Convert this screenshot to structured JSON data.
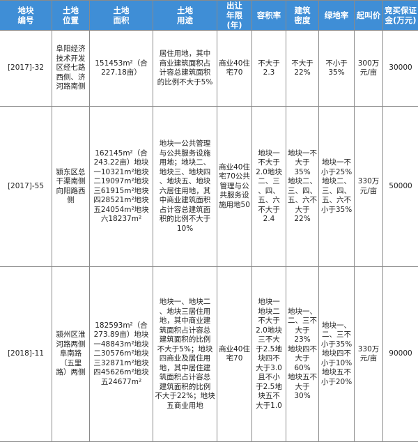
{
  "header": {
    "colors": {
      "header_bg": "#3f8ed6",
      "header_text": "#ffffff",
      "border": "#8a8a8a"
    },
    "columns": [
      "地块\n编号",
      "土地\n位置",
      "土地\n面积",
      "土地\n用途",
      "出让\n年限\n(年)",
      "容积率",
      "建筑\n密度",
      "绿地率",
      "起叫价",
      "竞买保证\n金(万元)"
    ]
  },
  "rows": [
    {
      "id": "[2017]-32",
      "location": "阜阳经济\n技术开发\n区经七路\n西侧、济\n河路南侧",
      "area": "151453m²（合\n227.18亩）",
      "use": "居住用地，其中\n商业建筑面积占\n计容总建筑面积\n的比例不大于5%",
      "term": "商业40住\n宅70",
      "far": "不大于\n2.3",
      "density": "不大于\n22%",
      "green": "不小于\n35%",
      "price": "300万\n元/亩",
      "deposit": "30000"
    },
    {
      "id": "[2017]-55",
      "location": "颍东区总\n干渠南侧\n向阳路西\n侧",
      "area": "162145m²（合\n243.22亩）地块\n一10321m²地块\n二19097m²地块\n三61915m²地块\n四28521m²地块\n五24054m²地块\n六18237m²",
      "use": "地块一公共管理\n与公共服务设施\n用地；地块二、\n地块三、地块四\n、地块五、地块\n六居住用地，其\n中商业建筑面积\n占计容总建筑面\n积的比例不大于\n10%",
      "term": "商业40住\n宅70公共\n管理与公\n共服务设\n施用地50",
      "far": "地块一\n不大于\n2.0地块\n二、三\n、四、\n五、六\n不大于\n2.4",
      "density": "地块一不\n大于35%\n地块二、\n三、四、\n五、六不\n大于22%",
      "green": "地块一不\n小于25%\n地块二、\n三、四、\n五、六不\n小于35%",
      "price": "330万\n元/亩",
      "deposit": "50000"
    },
    {
      "id": "[2018]-11",
      "location": "颍州区淮\n河路两侧\n阜南路\n（五里\n路）两侧",
      "area": "182593m²（合\n273.89亩）地块\n一48843m²地块\n二30576m²地块\n三32871m²地块\n四45626m²地块\n五24677m²",
      "use": "地块一、地块二\n、地块三居住用\n地，其中商业建\n筑面积占计容总\n建筑面积的比例\n不大于5%；地块\n四商业及居住用\n地，其中居住建\n筑面积占计容总\n建筑面积的比例\n不大于22%；地块\n五商业用地",
      "term": "商业40住\n宅70",
      "far": "地块一\n地块二\n不大于\n2.0地块\n三不大\n于2.5地\n块四不\n大于3.0\n且不小\n于2.5地\n块五不\n大于1.0",
      "density": "地块一、\n二、三不\n大于23%\n地块四不\n大于60%\n地块五不\n大于30%",
      "green": "地块一、\n二、三不\n小于35%\n地块四不\n小于10%\n地块五不\n小于20%",
      "price": "330万\n元/亩",
      "deposit": "90000"
    }
  ]
}
